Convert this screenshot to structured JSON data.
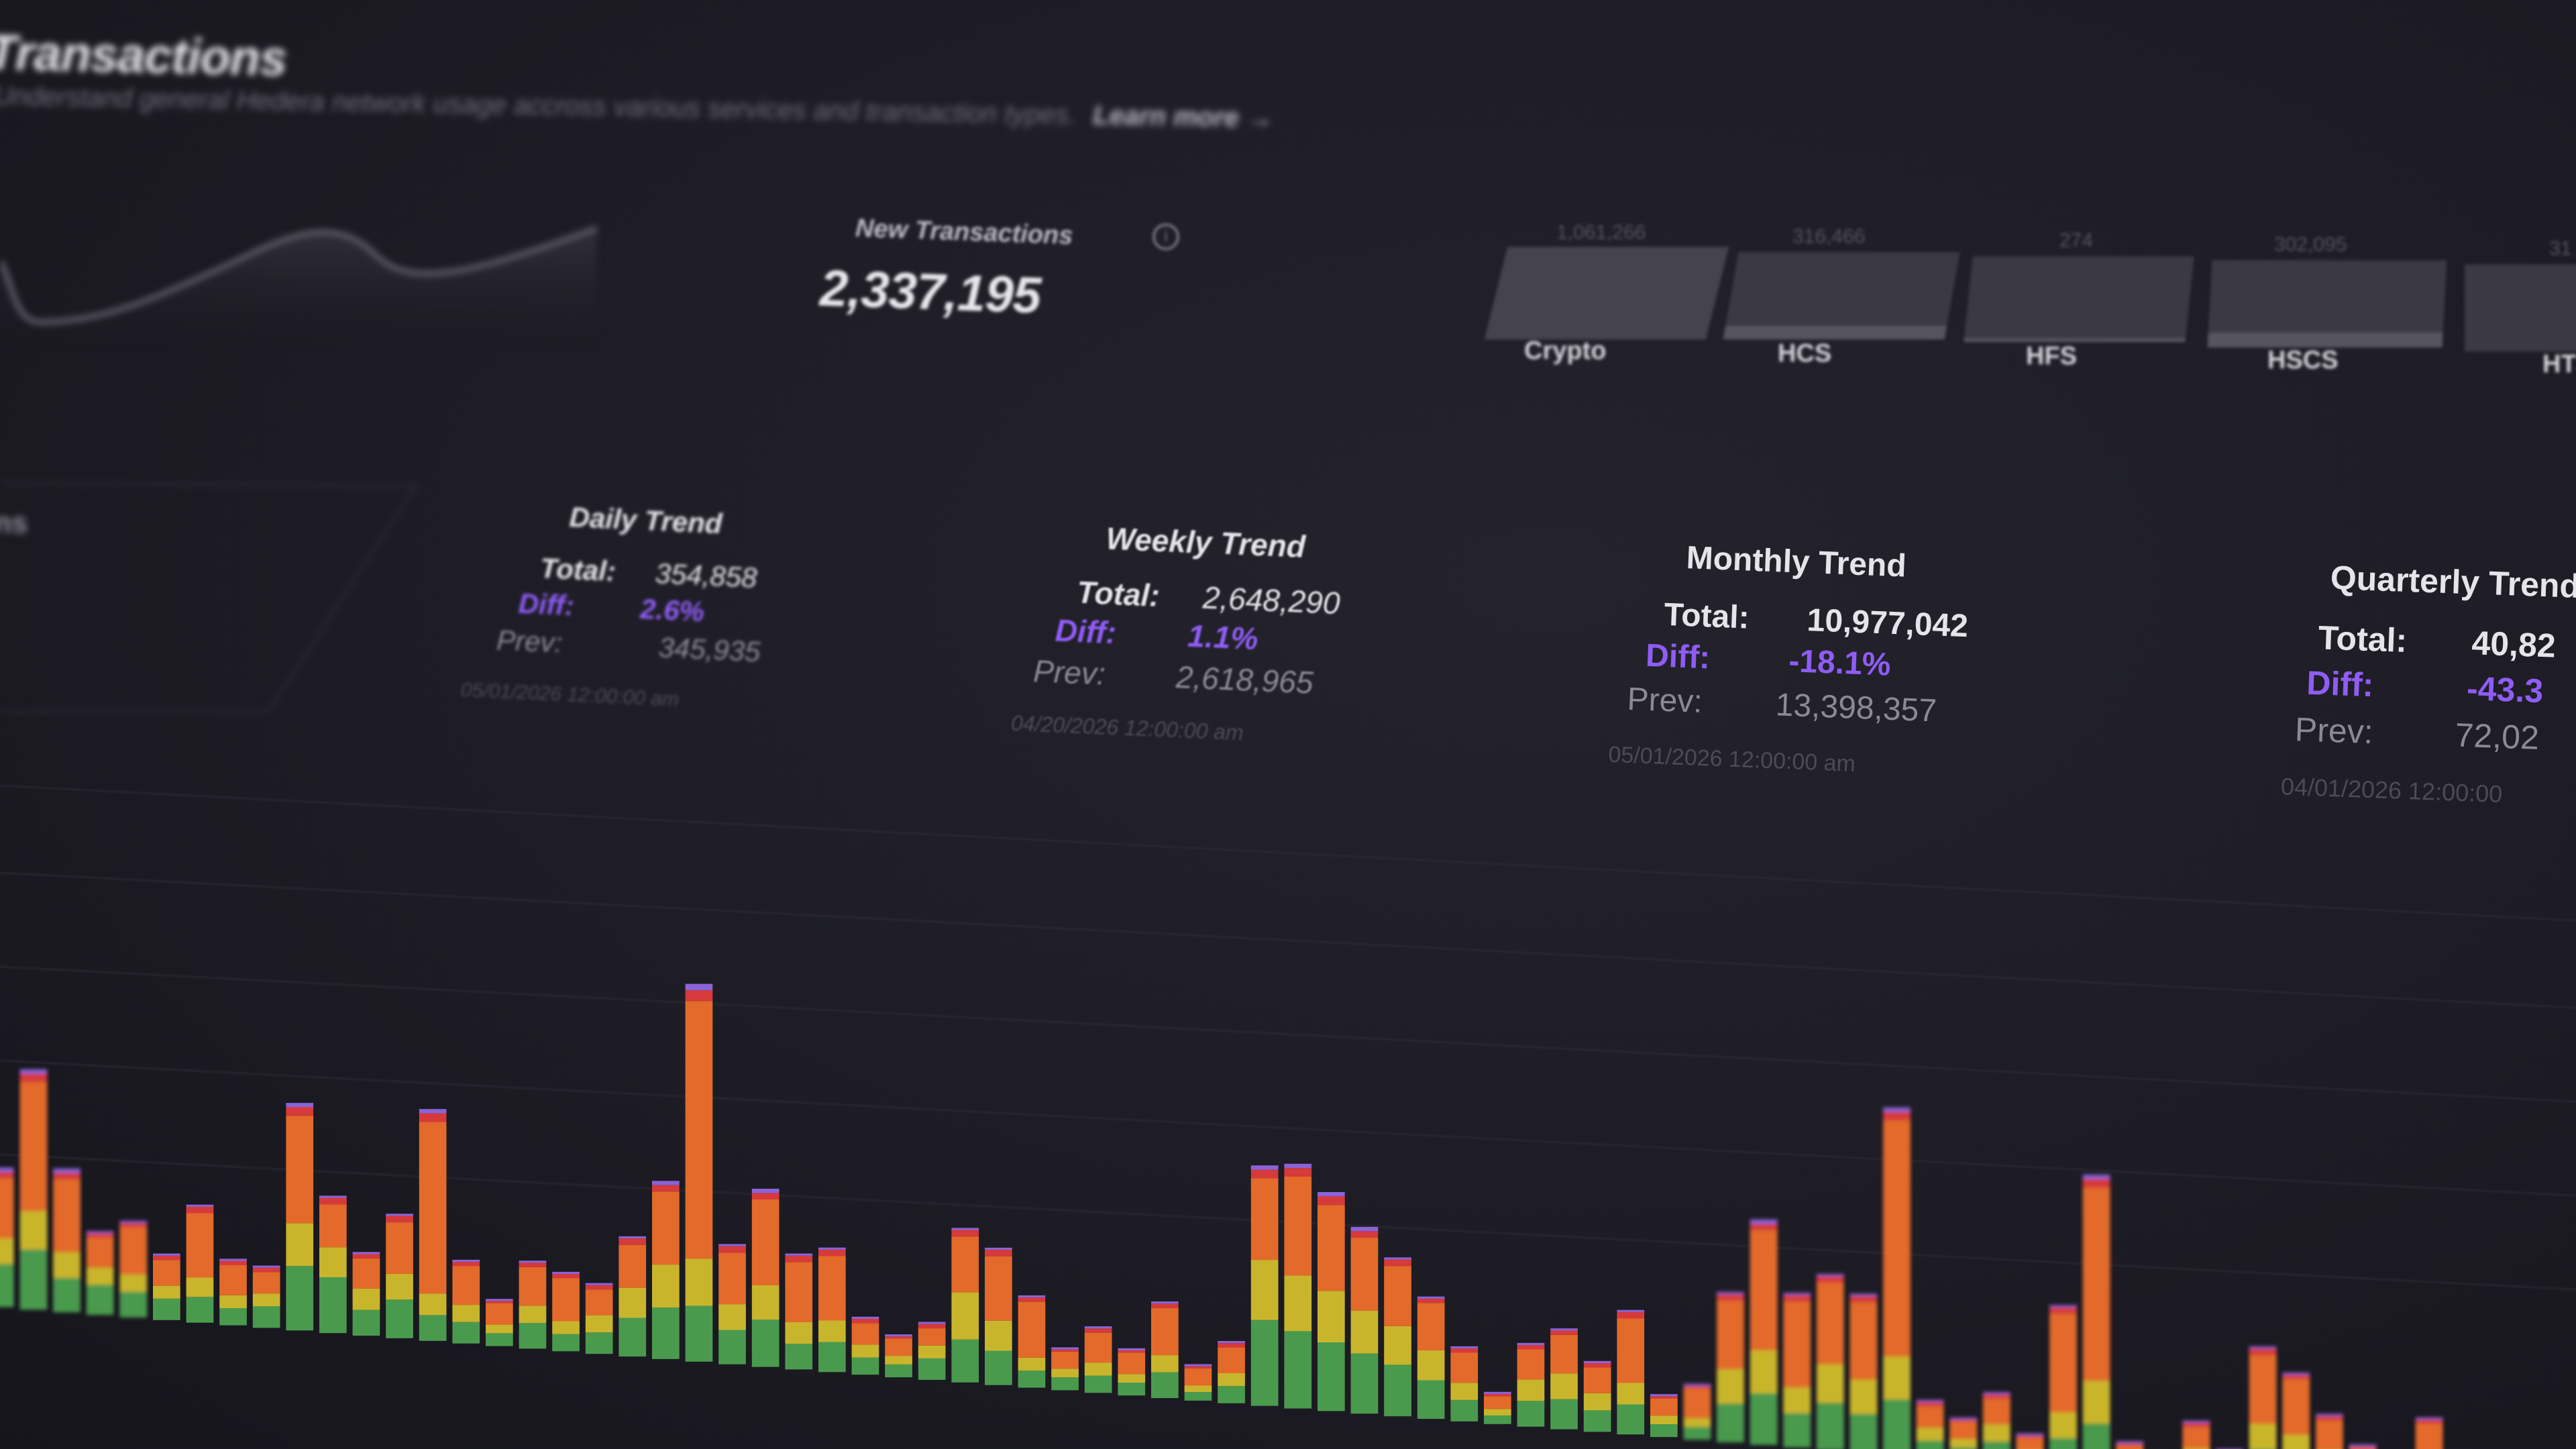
{
  "header": {
    "title": "Transactions",
    "subtitle": "Understand general Hedera network usage accross various services and transaction types.",
    "learn_more": "Learn more →"
  },
  "new_transactions": {
    "label": "New Transactions",
    "value": "2,337,195",
    "info_icon": "info-icon"
  },
  "services": [
    {
      "label": "Crypto",
      "value": "1,061,266"
    },
    {
      "label": "HCS",
      "value": "316,466"
    },
    {
      "label": "HFS",
      "value": "274"
    },
    {
      "label": "HSCS",
      "value": "302,095"
    },
    {
      "label": "HTS",
      "value": "31"
    }
  ],
  "trends": [
    {
      "title": "Daily Trend",
      "total_label": "Total:",
      "total": "354,858",
      "diff_label": "Diff:",
      "diff": "2.6%",
      "prev_label": "Prev:",
      "prev": "345,935",
      "date": "05/01/2026 12:00:00 am"
    },
    {
      "title": "Weekly Trend",
      "total_label": "Total:",
      "total": "2,648,290",
      "diff_label": "Diff:",
      "diff": "1.1%",
      "prev_label": "Prev:",
      "prev": "2,618,965",
      "date": "04/20/2026 12:00:00 am"
    },
    {
      "title": "Monthly Trend",
      "total_label": "Total:",
      "total": "10,977,042",
      "diff_label": "Diff:",
      "diff": "-18.1%",
      "prev_label": "Prev:",
      "prev": "13,398,357",
      "date": "05/01/2026 12:00:00 am"
    },
    {
      "title": "Quarterly Trend",
      "total_label": "Total:",
      "total": "40,82",
      "diff_label": "Diff:",
      "diff": "-43.3",
      "prev_label": "Prev:",
      "prev": "72,02",
      "date": "04/01/2026 12:00:00"
    }
  ],
  "side_fragments": {
    "fragment_a": "ns"
  },
  "colors": {
    "background": "#1d1c24",
    "accent_purple": "#8f5cf5",
    "bar_green": "#4a9a4e",
    "bar_yellow": "#c9b52c",
    "bar_orange": "#e36a2a",
    "bar_red": "#d63a3a",
    "bar_purple": "#8a63d8"
  },
  "chart_data": {
    "type": "bar",
    "stacked": true,
    "series_colors": [
      "#4a9a4e",
      "#c9b52c",
      "#e36a2a",
      "#d63a3a",
      "#8a63d8"
    ],
    "values": [
      [
        20,
        12,
        28,
        3,
        2
      ],
      [
        28,
        18,
        60,
        4,
        2
      ],
      [
        16,
        12,
        34,
        3,
        2
      ],
      [
        14,
        8,
        14,
        2,
        1
      ],
      [
        12,
        8,
        22,
        2,
        1
      ],
      [
        10,
        6,
        12,
        2,
        1
      ],
      [
        12,
        9,
        30,
        3,
        1
      ],
      [
        8,
        6,
        14,
        2,
        1
      ],
      [
        10,
        6,
        10,
        2,
        1
      ],
      [
        30,
        20,
        50,
        4,
        2
      ],
      [
        26,
        14,
        20,
        3,
        1
      ],
      [
        12,
        10,
        14,
        2,
        1
      ],
      [
        18,
        12,
        24,
        3,
        1
      ],
      [
        12,
        10,
        80,
        4,
        2
      ],
      [
        10,
        8,
        18,
        2,
        1
      ],
      [
        6,
        4,
        10,
        1,
        1
      ],
      [
        12,
        8,
        18,
        2,
        1
      ],
      [
        8,
        6,
        20,
        2,
        1
      ],
      [
        10,
        8,
        12,
        2,
        1
      ],
      [
        18,
        14,
        20,
        3,
        1
      ],
      [
        24,
        20,
        34,
        3,
        2
      ],
      [
        26,
        22,
        120,
        5,
        3
      ],
      [
        16,
        12,
        24,
        3,
        1
      ],
      [
        22,
        16,
        40,
        3,
        2
      ],
      [
        12,
        10,
        28,
        3,
        1
      ],
      [
        14,
        10,
        30,
        3,
        1
      ],
      [
        8,
        6,
        10,
        2,
        1
      ],
      [
        6,
        4,
        8,
        1,
        1
      ],
      [
        10,
        6,
        8,
        2,
        1
      ],
      [
        20,
        22,
        26,
        3,
        1
      ],
      [
        16,
        14,
        30,
        3,
        1
      ],
      [
        8,
        6,
        26,
        2,
        1
      ],
      [
        6,
        4,
        8,
        1,
        1
      ],
      [
        8,
        6,
        14,
        2,
        1
      ],
      [
        6,
        4,
        10,
        1,
        1
      ],
      [
        12,
        8,
        22,
        2,
        1
      ],
      [
        4,
        3,
        8,
        1,
        1
      ],
      [
        8,
        6,
        12,
        2,
        1
      ],
      [
        40,
        28,
        38,
        4,
        2
      ],
      [
        36,
        26,
        46,
        4,
        2
      ],
      [
        32,
        24,
        40,
        4,
        2
      ],
      [
        28,
        20,
        34,
        3,
        2
      ],
      [
        24,
        18,
        28,
        3,
        1
      ],
      [
        18,
        14,
        22,
        2,
        1
      ],
      [
        10,
        8,
        14,
        2,
        1
      ],
      [
        4,
        3,
        6,
        1,
        1
      ],
      [
        12,
        10,
        14,
        2,
        1
      ],
      [
        14,
        12,
        18,
        2,
        1
      ],
      [
        10,
        8,
        12,
        2,
        1
      ],
      [
        14,
        10,
        30,
        3,
        1
      ],
      [
        6,
        4,
        8,
        1,
        1
      ],
      [
        6,
        4,
        14,
        1,
        1
      ],
      [
        18,
        16,
        32,
        3,
        1
      ],
      [
        24,
        20,
        56,
        3,
        2
      ],
      [
        16,
        12,
        40,
        3,
        1
      ],
      [
        22,
        18,
        38,
        3,
        1
      ],
      [
        18,
        16,
        36,
        3,
        1
      ],
      [
        26,
        20,
        110,
        4,
        2
      ],
      [
        8,
        6,
        10,
        2,
        1
      ],
      [
        6,
        4,
        8,
        1,
        1
      ],
      [
        10,
        8,
        12,
        2,
        1
      ],
      [
        4,
        3,
        6,
        1,
        1
      ],
      [
        14,
        12,
        46,
        3,
        1
      ],
      [
        22,
        20,
        90,
        4,
        2
      ],
      [
        4,
        3,
        6,
        1,
        1
      ],
      [
        2,
        2,
        3,
        1,
        1
      ],
      [
        8,
        6,
        10,
        2,
        1
      ],
      [
        4,
        3,
        6,
        1,
        1
      ],
      [
        16,
        12,
        32,
        3,
        1
      ],
      [
        14,
        10,
        26,
        2,
        1
      ],
      [
        10,
        8,
        14,
        2,
        1
      ],
      [
        6,
        4,
        10,
        1,
        1
      ],
      [
        4,
        3,
        8,
        1,
        1
      ],
      [
        8,
        6,
        20,
        2,
        1
      ],
      [
        6,
        4,
        10,
        1,
        1
      ]
    ]
  }
}
